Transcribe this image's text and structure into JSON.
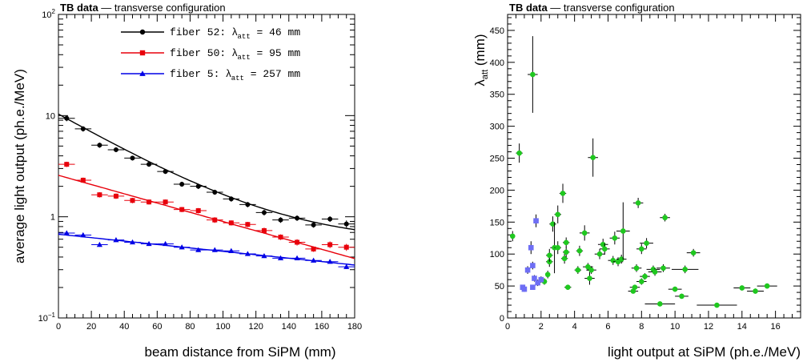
{
  "chart_data": [
    {
      "type": "scatter",
      "header": {
        "bold": "TB data",
        "dash": "—",
        "text": "transverse configuration"
      },
      "xlabel": "beam distance from SiPM (mm)",
      "ylabel": "average light output (ph.e./MeV)",
      "xlim": [
        0,
        180
      ],
      "ylim": [
        0.1,
        100
      ],
      "yscale": "log",
      "x_ticks": [
        "0",
        "20",
        "40",
        "60",
        "80",
        "100",
        "120",
        "140",
        "160",
        "180"
      ],
      "y_ticks": [
        {
          "base": "10",
          "exp": "−1"
        },
        {
          "base": "1",
          "exp": ""
        },
        {
          "base": "10",
          "exp": ""
        },
        {
          "base": "10",
          "exp": "2"
        }
      ],
      "legend_position": "top-right",
      "series": [
        {
          "name": "fiber 52:",
          "lambda_sym": "λ",
          "lambda_sub": "att",
          "lambda_val": "=  46 mm",
          "color": "#000000",
          "marker": "circle",
          "fit": {
            "a": 9.8,
            "lambda": 46,
            "offset": 0.55
          },
          "x": [
            5,
            15,
            25,
            35,
            45,
            55,
            65,
            75,
            85,
            95,
            105,
            115,
            125,
            135,
            145,
            155,
            165,
            175
          ],
          "y": [
            9.4,
            7.4,
            5.1,
            4.6,
            3.8,
            3.3,
            2.8,
            2.1,
            2.0,
            1.75,
            1.5,
            1.32,
            1.1,
            0.93,
            0.97,
            0.83,
            0.95,
            0.85
          ],
          "err": [
            0.6,
            0.45,
            0.3,
            0.25,
            0.2,
            0.18,
            0.15,
            0.12,
            0.12,
            0.1,
            0.09,
            0.08,
            0.07,
            0.06,
            0.06,
            0.05,
            0.06,
            0.07
          ]
        },
        {
          "name": "fiber 50:",
          "lambda_sym": "λ",
          "lambda_sub": "att",
          "lambda_val": "=  95 mm",
          "color": "#e8000b",
          "marker": "square",
          "fit": {
            "a": 2.57,
            "lambda": 95,
            "offset": 0
          },
          "x": [
            5,
            15,
            25,
            35,
            45,
            55,
            65,
            75,
            85,
            95,
            105,
            115,
            125,
            135,
            145,
            155,
            165,
            175
          ],
          "y": [
            3.3,
            2.3,
            1.65,
            1.6,
            1.45,
            1.4,
            1.4,
            1.18,
            1.15,
            0.93,
            0.87,
            0.84,
            0.73,
            0.63,
            0.56,
            0.48,
            0.53,
            0.5
          ],
          "err": [
            0.2,
            0.14,
            0.1,
            0.1,
            0.09,
            0.08,
            0.08,
            0.07,
            0.07,
            0.06,
            0.05,
            0.05,
            0.05,
            0.04,
            0.04,
            0.03,
            0.04,
            0.04
          ]
        },
        {
          "name": "fiber  5:",
          "lambda_sym": "λ",
          "lambda_sub": "att",
          "lambda_val": "= 257 mm",
          "color": "#0000e6",
          "marker": "triangle",
          "fit": {
            "a": 0.672,
            "lambda": 257,
            "offset": 0
          },
          "x": [
            5,
            15,
            25,
            35,
            45,
            55,
            65,
            75,
            85,
            95,
            105,
            115,
            125,
            135,
            145,
            155,
            165,
            175
          ],
          "y": [
            0.69,
            0.66,
            0.53,
            0.59,
            0.56,
            0.54,
            0.54,
            0.5,
            0.47,
            0.47,
            0.46,
            0.43,
            0.41,
            0.39,
            0.39,
            0.37,
            0.36,
            0.32
          ],
          "err": [
            0.03,
            0.03,
            0.025,
            0.025,
            0.025,
            0.024,
            0.024,
            0.022,
            0.021,
            0.021,
            0.02,
            0.019,
            0.018,
            0.017,
            0.017,
            0.016,
            0.016,
            0.015
          ]
        }
      ]
    },
    {
      "type": "scatter",
      "header": {
        "bold": "TB data",
        "dash": "—",
        "text": "transverse configuration"
      },
      "xlabel": "light output at SiPM (ph.e./MeV)",
      "ylabel": "λ",
      "ylabel_sub": "att",
      "ylabel_unit": " (mm)",
      "xlim": [
        0,
        17.5
      ],
      "ylim": [
        0,
        475
      ],
      "x_ticks": [
        0,
        2,
        4,
        6,
        8,
        10,
        12,
        14,
        16
      ],
      "y_ticks": [
        0,
        50,
        100,
        150,
        200,
        250,
        300,
        350,
        400,
        450
      ],
      "series": [
        {
          "color": "#1fc81f",
          "marker": "circle",
          "points": [
            [
              0.3,
              128,
              0.15,
              8
            ],
            [
              0.7,
              258,
              0.2,
              15
            ],
            [
              1.5,
              381,
              0.3,
              60
            ],
            [
              2.2,
              57,
              0.15,
              5
            ],
            [
              2.4,
              68,
              0.15,
              6
            ],
            [
              2.5,
              88,
              0.2,
              8
            ],
            [
              2.5,
              98,
              0.2,
              10
            ],
            [
              2.7,
              147,
              0.2,
              12
            ],
            [
              2.8,
              110,
              0.25,
              40
            ],
            [
              3.0,
              162,
              0.2,
              14
            ],
            [
              3.0,
              110,
              0.2,
              10
            ],
            [
              3.3,
              195,
              0.2,
              15
            ],
            [
              3.4,
              93,
              0.2,
              8
            ],
            [
              3.5,
              103,
              0.2,
              8
            ],
            [
              3.5,
              118,
              0.2,
              8
            ],
            [
              3.6,
              48,
              0.2,
              4
            ],
            [
              4.2,
              75,
              0.2,
              6
            ],
            [
              4.3,
              105,
              0.2,
              8
            ],
            [
              4.6,
              133,
              0.3,
              12
            ],
            [
              4.8,
              80,
              0.3,
              6
            ],
            [
              4.9,
              62,
              0.3,
              10
            ],
            [
              5.0,
              75,
              0.3,
              6
            ],
            [
              5.1,
              251,
              0.3,
              30
            ],
            [
              5.5,
              100,
              0.3,
              8
            ],
            [
              5.7,
              115,
              0.3,
              9
            ],
            [
              5.8,
              108,
              0.3,
              9
            ],
            [
              6.3,
              90,
              0.3,
              7
            ],
            [
              6.4,
              125,
              0.3,
              10
            ],
            [
              6.6,
              88,
              0.3,
              7
            ],
            [
              6.8,
              92,
              0.3,
              7
            ],
            [
              6.9,
              136,
              0.4,
              45
            ],
            [
              7.5,
              42,
              0.3,
              4
            ],
            [
              7.6,
              48,
              0.3,
              4
            ],
            [
              7.7,
              78,
              0.3,
              6
            ],
            [
              7.8,
              180,
              0.3,
              8
            ],
            [
              8.0,
              108,
              0.3,
              8
            ],
            [
              8.0,
              57,
              0.3,
              5
            ],
            [
              8.2,
              65,
              0.3,
              5
            ],
            [
              8.3,
              117,
              0.4,
              8
            ],
            [
              8.7,
              76,
              0.4,
              6
            ],
            [
              8.8,
              72,
              0.4,
              6
            ],
            [
              9.1,
              22,
              0.9,
              3
            ],
            [
              9.3,
              78,
              0.4,
              6
            ],
            [
              9.4,
              157,
              0.3,
              6
            ],
            [
              10.0,
              45,
              0.4,
              4
            ],
            [
              10.4,
              34,
              0.4,
              4
            ],
            [
              10.6,
              76,
              0.8,
              6
            ],
            [
              11.1,
              102,
              0.4,
              6
            ],
            [
              12.5,
              20,
              1.2,
              2
            ],
            [
              14.0,
              47,
              0.5,
              4
            ],
            [
              14.8,
              42,
              0.5,
              4
            ],
            [
              15.5,
              50,
              0.6,
              4
            ]
          ]
        },
        {
          "color": "#6e6ef5",
          "marker": "square",
          "points": [
            [
              0.9,
              48,
              0.1,
              4
            ],
            [
              1.0,
              45,
              0.1,
              4
            ],
            [
              1.2,
              75,
              0.1,
              6
            ],
            [
              1.4,
              110,
              0.1,
              10
            ],
            [
              1.5,
              48,
              0.1,
              4
            ],
            [
              1.5,
              82,
              0.1,
              6
            ],
            [
              1.6,
              62,
              0.1,
              5
            ],
            [
              1.7,
              152,
              0.15,
              10
            ],
            [
              1.8,
              55,
              0.1,
              5
            ],
            [
              2.0,
              60,
              0.1,
              5
            ]
          ]
        }
      ]
    }
  ]
}
